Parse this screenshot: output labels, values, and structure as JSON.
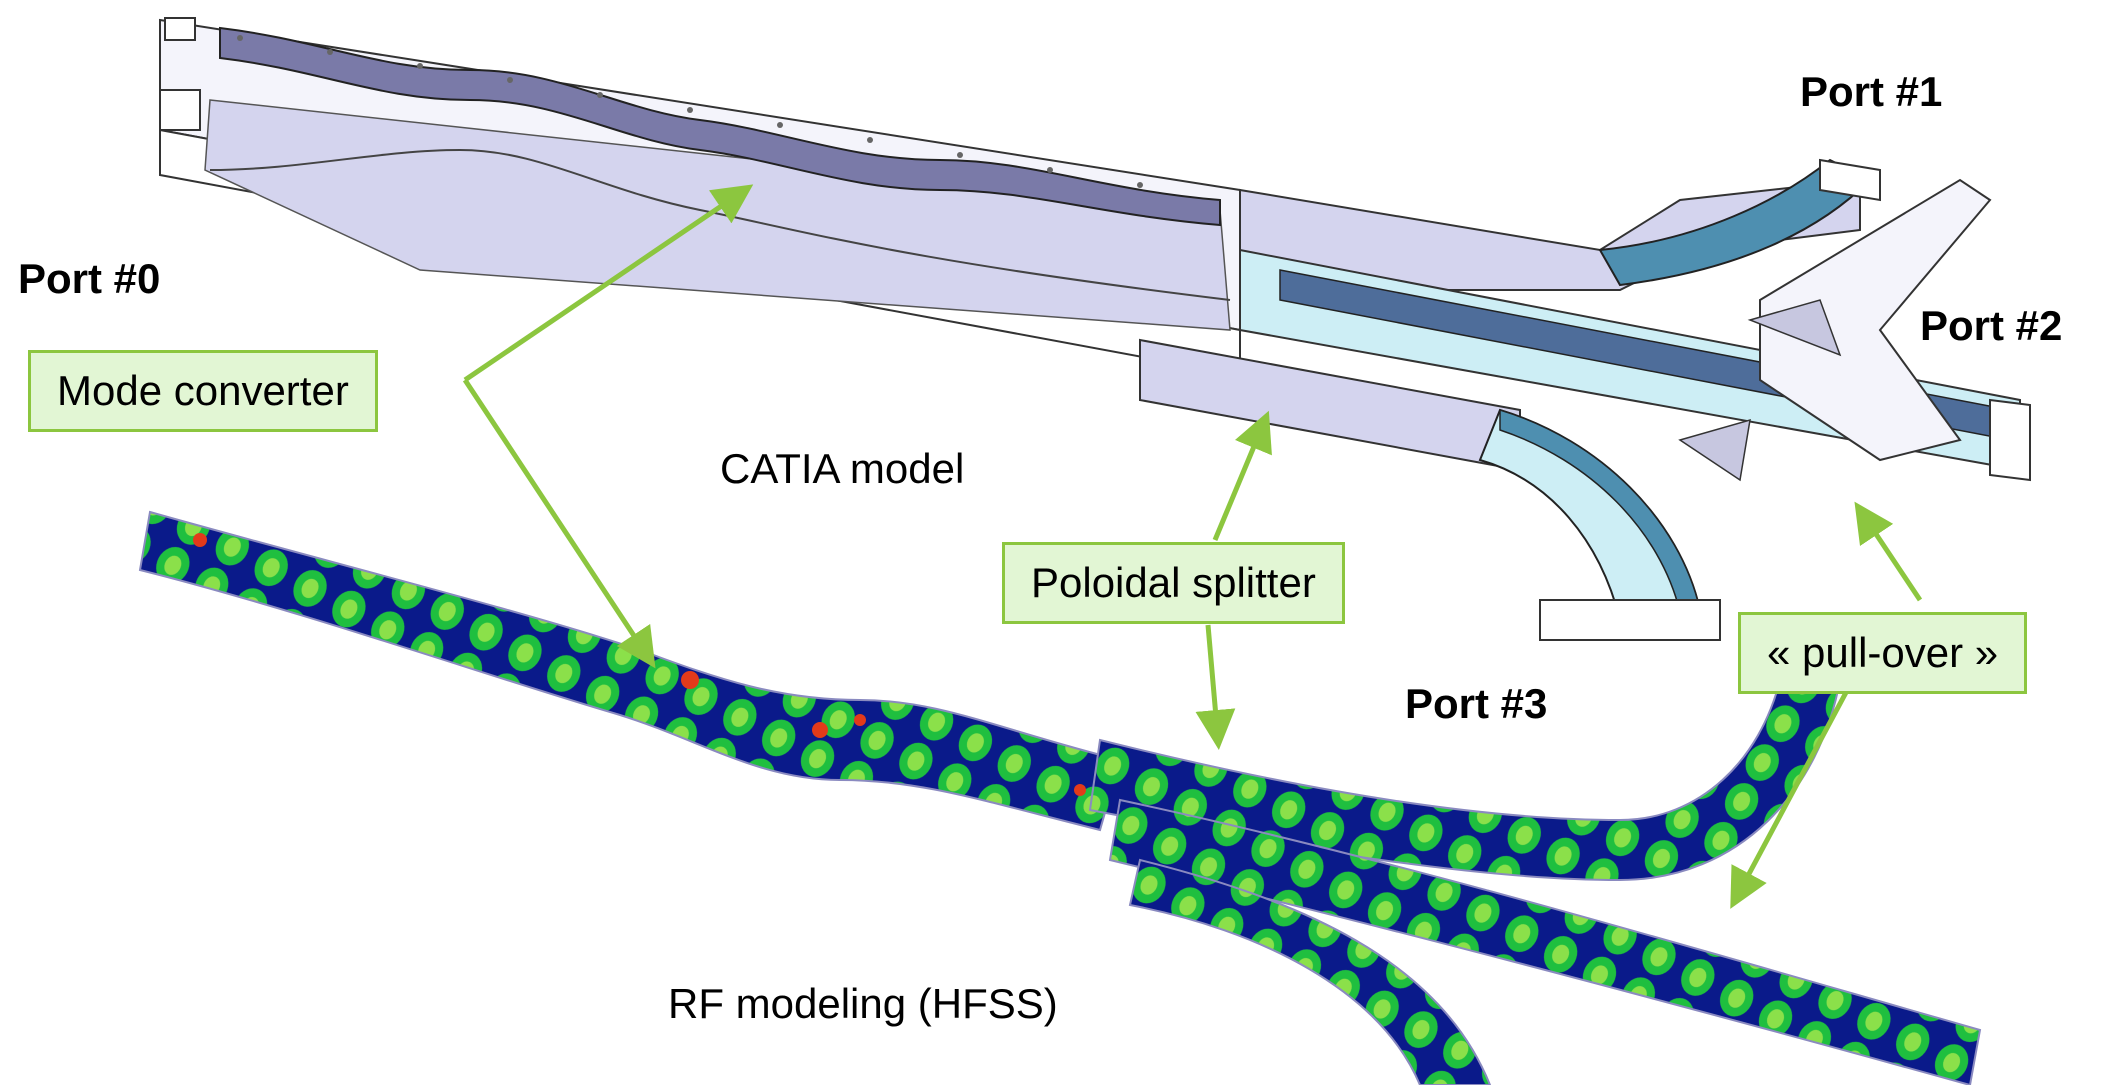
{
  "labels": {
    "port0": "Port #0",
    "port1": "Port #1",
    "port2": "Port #2",
    "port3": "Port #3",
    "mode_converter": "Mode converter",
    "catia_model": "CATIA model",
    "poloidal_splitter": "Poloidal splitter",
    "pull_over": "« pull-over »",
    "rf_modeling": "RF modeling (HFSS)"
  },
  "colors": {
    "accent": "#8cc63f",
    "callout_fill": "#e2f6d4",
    "metal_face": "#d4d4ee",
    "metal_wall": "#7a7aa8",
    "metal_top": "#f4f4fb",
    "cyan_face": "#cdeef5",
    "field_dark": "#0a1a8a",
    "field_mid": "#1fbf3f",
    "field_hot": "#e23a1a"
  },
  "icons": {
    "arrow": "arrowhead"
  }
}
